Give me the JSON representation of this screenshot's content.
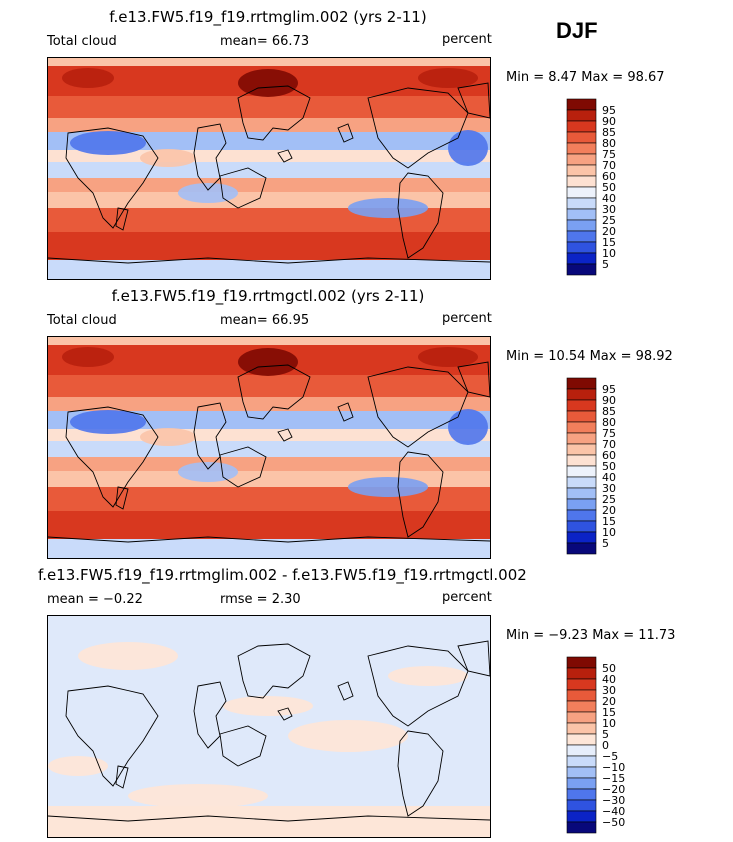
{
  "season": "DJF",
  "colors": {
    "positive_scale": [
      "#08087a",
      "#0b23c6",
      "#2f53e0",
      "#4f76ec",
      "#7aa0f2",
      "#a2bff6",
      "#c9dbfa",
      "#edf2fb",
      "#fde1d2",
      "#fbc4a8",
      "#f7a282",
      "#f27f5c",
      "#e85a3a",
      "#d8381f",
      "#b8200d",
      "#7f0a02"
    ],
    "diff_scale": [
      "#08087a",
      "#0b23c6",
      "#2f53e0",
      "#4f76ec",
      "#7aa0f2",
      "#a2bff6",
      "#c9dbfa",
      "#e6eefb",
      "#fde6d8",
      "#fbc4a8",
      "#f7a282",
      "#f27f5c",
      "#e85a3a",
      "#d8381f",
      "#b8200d",
      "#7f0a02"
    ]
  },
  "panels": [
    {
      "title": "f.e13.FW5.f19_f19.rrtmglim.002 (yrs 2-11)",
      "left_label": "Total cloud",
      "mean_text": "mean=  66.73",
      "units": "percent",
      "minmax_text": "Min =   8.47 Max =  98.67",
      "levels": [
        "95",
        "90",
        "85",
        "80",
        "75",
        "70",
        "60",
        "50",
        "40",
        "30",
        "25",
        "20",
        "15",
        "10",
        "5"
      ]
    },
    {
      "title": "f.e13.FW5.f19_f19.rrtmgctl.002 (yrs 2-11)",
      "left_label": "Total cloud",
      "mean_text": "mean=  66.95",
      "units": "percent",
      "minmax_text": "Min =  10.54 Max =  98.92",
      "levels": [
        "95",
        "90",
        "85",
        "80",
        "75",
        "70",
        "60",
        "50",
        "40",
        "30",
        "25",
        "20",
        "15",
        "10",
        "5"
      ]
    },
    {
      "title": "f.e13.FW5.f19_f19.rrtmglim.002 - f.e13.FW5.f19_f19.rrtmgctl.002",
      "left_label": "mean =  −0.22",
      "mean_text": "rmse =    2.30",
      "units": "percent",
      "minmax_text": "Min =  −9.23 Max =  11.73",
      "levels": [
        "50",
        "40",
        "30",
        "20",
        "15",
        "10",
        "5",
        "0",
        "−5",
        "−10",
        "−15",
        "−20",
        "−30",
        "−40",
        "−50"
      ]
    }
  ]
}
